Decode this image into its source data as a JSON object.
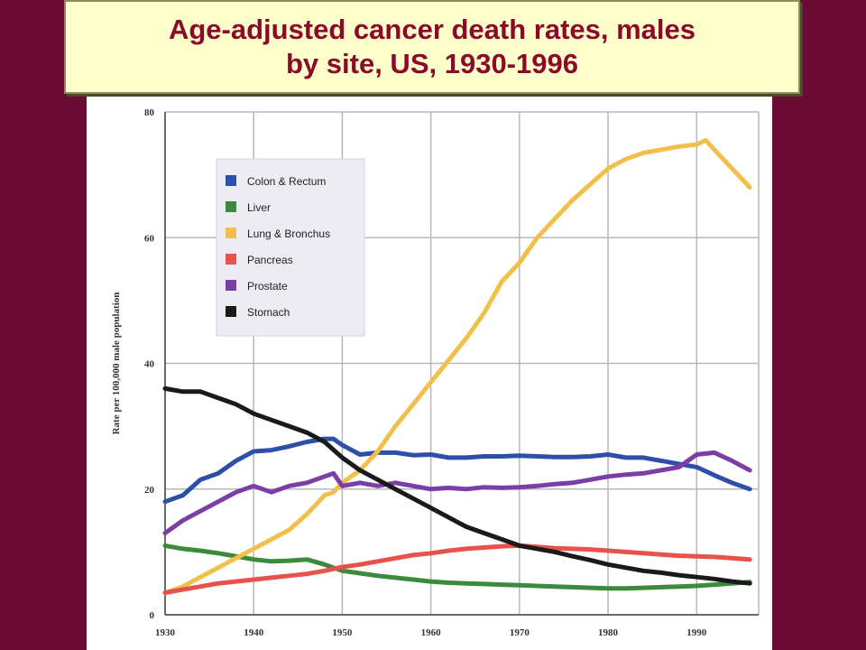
{
  "title": {
    "line1": "Age-adjusted cancer death rates, males",
    "line2": "by site, US, 1930-1996"
  },
  "chart_data": {
    "type": "line",
    "title": "Age-adjusted cancer death rates, males by site, US, 1930-1996",
    "xlabel": "",
    "ylabel": "Rate per 100,000 male population",
    "xlim": [
      1930,
      1997
    ],
    "ylim": [
      0,
      80
    ],
    "x_ticks": [
      "1930",
      "1940",
      "1950",
      "1960",
      "1970",
      "1980",
      "1990"
    ],
    "x_tick_values": [
      1930,
      1940,
      1950,
      1960,
      1970,
      1980,
      1990
    ],
    "y_ticks": [
      "0",
      "20",
      "40",
      "60",
      "80"
    ],
    "y_tick_values": [
      0,
      20,
      40,
      60,
      80
    ],
    "grid": true,
    "legend_position": "upper-left",
    "series": [
      {
        "name": "Colon & Rectum",
        "color": "#2e4fa8",
        "x": [
          1930,
          1932,
          1934,
          1936,
          1938,
          1940,
          1942,
          1944,
          1946,
          1948,
          1949,
          1950,
          1952,
          1954,
          1956,
          1958,
          1960,
          1962,
          1964,
          1966,
          1968,
          1970,
          1972,
          1974,
          1976,
          1978,
          1980,
          1982,
          1984,
          1986,
          1988,
          1990,
          1992,
          1994,
          1996
        ],
        "y": [
          18,
          19,
          21.5,
          22.5,
          24.5,
          26,
          26.2,
          26.8,
          27.5,
          28,
          28,
          27,
          25.5,
          25.8,
          25.8,
          25.4,
          25.5,
          25,
          25,
          25.2,
          25.2,
          25.3,
          25.2,
          25.1,
          25.1,
          25.2,
          25.5,
          25,
          25,
          24.5,
          24,
          23.5,
          22.2,
          21,
          20
        ]
      },
      {
        "name": "Liver",
        "color": "#3c8a3c",
        "x": [
          1930,
          1932,
          1934,
          1936,
          1938,
          1940,
          1942,
          1944,
          1946,
          1948,
          1950,
          1952,
          1954,
          1956,
          1958,
          1960,
          1962,
          1964,
          1966,
          1968,
          1970,
          1972,
          1974,
          1976,
          1978,
          1980,
          1982,
          1984,
          1986,
          1988,
          1990,
          1992,
          1994,
          1996
        ],
        "y": [
          11,
          10.5,
          10.2,
          9.8,
          9.3,
          8.8,
          8.5,
          8.6,
          8.8,
          8,
          7,
          6.6,
          6.2,
          5.9,
          5.6,
          5.3,
          5.1,
          5,
          4.9,
          4.8,
          4.7,
          4.6,
          4.5,
          4.4,
          4.3,
          4.2,
          4.2,
          4.3,
          4.4,
          4.5,
          4.6,
          4.8,
          5,
          5.2
        ]
      },
      {
        "name": "Lung & Bronchus",
        "color": "#f2c04a",
        "x": [
          1930,
          1932,
          1934,
          1936,
          1938,
          1940,
          1942,
          1944,
          1946,
          1948,
          1949,
          1950,
          1952,
          1954,
          1956,
          1958,
          1960,
          1962,
          1964,
          1966,
          1968,
          1970,
          1972,
          1974,
          1976,
          1978,
          1980,
          1982,
          1984,
          1986,
          1988,
          1990,
          1991,
          1992,
          1994,
          1996
        ],
        "y": [
          3.5,
          4.5,
          6,
          7.5,
          9,
          10.5,
          12,
          13.5,
          16,
          19,
          19.5,
          21,
          23,
          26,
          30,
          33.5,
          37,
          40.5,
          44,
          48,
          53,
          56,
          60,
          63,
          66,
          68.5,
          71,
          72.5,
          73.5,
          74,
          74.5,
          74.8,
          75.5,
          74,
          71,
          68
        ]
      },
      {
        "name": "Pancreas",
        "color": "#e8524a",
        "x": [
          1930,
          1932,
          1934,
          1936,
          1938,
          1940,
          1942,
          1944,
          1946,
          1948,
          1950,
          1952,
          1954,
          1956,
          1958,
          1960,
          1962,
          1964,
          1966,
          1968,
          1970,
          1972,
          1974,
          1976,
          1978,
          1980,
          1982,
          1984,
          1986,
          1988,
          1990,
          1992,
          1994,
          1996
        ],
        "y": [
          3.5,
          4,
          4.5,
          5,
          5.3,
          5.6,
          5.9,
          6.2,
          6.5,
          7,
          7.6,
          8,
          8.5,
          9,
          9.5,
          9.8,
          10.2,
          10.5,
          10.7,
          10.9,
          11,
          10.8,
          10.6,
          10.5,
          10.4,
          10.2,
          10,
          9.8,
          9.6,
          9.4,
          9.3,
          9.2,
          9,
          8.8
        ]
      },
      {
        "name": "Prostate",
        "color": "#7a3ea6",
        "x": [
          1930,
          1932,
          1934,
          1936,
          1938,
          1940,
          1942,
          1944,
          1946,
          1948,
          1949,
          1950,
          1952,
          1954,
          1956,
          1958,
          1960,
          1962,
          1964,
          1966,
          1968,
          1970,
          1972,
          1974,
          1976,
          1978,
          1980,
          1982,
          1984,
          1986,
          1988,
          1990,
          1992,
          1994,
          1996
        ],
        "y": [
          13,
          15,
          16.5,
          18,
          19.5,
          20.5,
          19.5,
          20.5,
          21,
          22,
          22.5,
          20.5,
          21,
          20.5,
          21,
          20.5,
          20,
          20.2,
          20,
          20.3,
          20.2,
          20.3,
          20.5,
          20.8,
          21,
          21.5,
          22,
          22.3,
          22.5,
          23,
          23.5,
          25.5,
          25.8,
          24.5,
          23
        ]
      },
      {
        "name": "Stomach",
        "color": "#1a1a1a",
        "x": [
          1930,
          1932,
          1934,
          1936,
          1938,
          1940,
          1942,
          1944,
          1946,
          1948,
          1950,
          1952,
          1954,
          1956,
          1958,
          1960,
          1962,
          1964,
          1966,
          1968,
          1970,
          1972,
          1974,
          1976,
          1978,
          1980,
          1982,
          1984,
          1986,
          1988,
          1990,
          1992,
          1994,
          1996
        ],
        "y": [
          36,
          35.5,
          35.5,
          34.5,
          33.5,
          32,
          31,
          30,
          29,
          27.5,
          25,
          23,
          21.5,
          20,
          18.5,
          17,
          15.5,
          14,
          13,
          12,
          11,
          10.5,
          10,
          9.3,
          8.7,
          8,
          7.5,
          7,
          6.7,
          6.3,
          6,
          5.7,
          5.3,
          5
        ]
      }
    ]
  }
}
